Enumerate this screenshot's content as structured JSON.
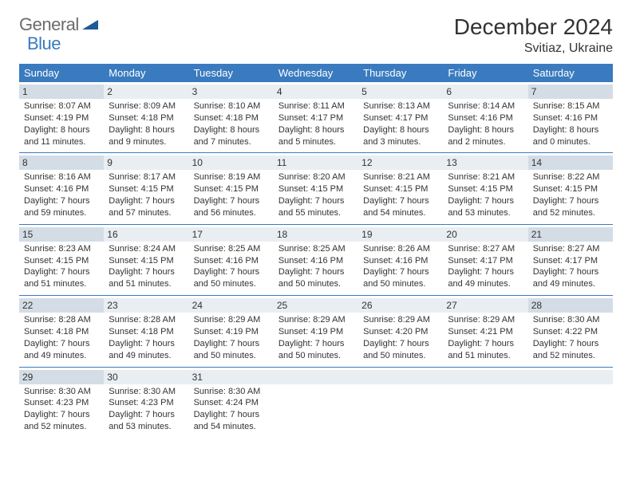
{
  "logo": {
    "text1": "General",
    "text2": "Blue",
    "shape_color": "#1e5a96"
  },
  "title": "December 2024",
  "subtitle": "Svitiaz, Ukraine",
  "colors": {
    "header_bg": "#3a7bbf",
    "header_text": "#ffffff",
    "daynum_bg": "#e9eef3",
    "daynum_hl_bg": "#d4dde6",
    "divider": "#3a7bbf",
    "text": "#333333",
    "page_bg": "#ffffff"
  },
  "typography": {
    "title_fontsize": 28,
    "subtitle_fontsize": 16,
    "dayhead_fontsize": 13,
    "daynum_fontsize": 12,
    "info_fontsize": 11
  },
  "dayheads": [
    "Sunday",
    "Monday",
    "Tuesday",
    "Wednesday",
    "Thursday",
    "Friday",
    "Saturday"
  ],
  "weeks": [
    [
      {
        "n": "1",
        "hl": true,
        "sunrise": "Sunrise: 8:07 AM",
        "sunset": "Sunset: 4:19 PM",
        "daylight": "Daylight: 8 hours and 11 minutes."
      },
      {
        "n": "2",
        "hl": false,
        "sunrise": "Sunrise: 8:09 AM",
        "sunset": "Sunset: 4:18 PM",
        "daylight": "Daylight: 8 hours and 9 minutes."
      },
      {
        "n": "3",
        "hl": false,
        "sunrise": "Sunrise: 8:10 AM",
        "sunset": "Sunset: 4:18 PM",
        "daylight": "Daylight: 8 hours and 7 minutes."
      },
      {
        "n": "4",
        "hl": false,
        "sunrise": "Sunrise: 8:11 AM",
        "sunset": "Sunset: 4:17 PM",
        "daylight": "Daylight: 8 hours and 5 minutes."
      },
      {
        "n": "5",
        "hl": false,
        "sunrise": "Sunrise: 8:13 AM",
        "sunset": "Sunset: 4:17 PM",
        "daylight": "Daylight: 8 hours and 3 minutes."
      },
      {
        "n": "6",
        "hl": false,
        "sunrise": "Sunrise: 8:14 AM",
        "sunset": "Sunset: 4:16 PM",
        "daylight": "Daylight: 8 hours and 2 minutes."
      },
      {
        "n": "7",
        "hl": true,
        "sunrise": "Sunrise: 8:15 AM",
        "sunset": "Sunset: 4:16 PM",
        "daylight": "Daylight: 8 hours and 0 minutes."
      }
    ],
    [
      {
        "n": "8",
        "hl": true,
        "sunrise": "Sunrise: 8:16 AM",
        "sunset": "Sunset: 4:16 PM",
        "daylight": "Daylight: 7 hours and 59 minutes."
      },
      {
        "n": "9",
        "hl": false,
        "sunrise": "Sunrise: 8:17 AM",
        "sunset": "Sunset: 4:15 PM",
        "daylight": "Daylight: 7 hours and 57 minutes."
      },
      {
        "n": "10",
        "hl": false,
        "sunrise": "Sunrise: 8:19 AM",
        "sunset": "Sunset: 4:15 PM",
        "daylight": "Daylight: 7 hours and 56 minutes."
      },
      {
        "n": "11",
        "hl": false,
        "sunrise": "Sunrise: 8:20 AM",
        "sunset": "Sunset: 4:15 PM",
        "daylight": "Daylight: 7 hours and 55 minutes."
      },
      {
        "n": "12",
        "hl": false,
        "sunrise": "Sunrise: 8:21 AM",
        "sunset": "Sunset: 4:15 PM",
        "daylight": "Daylight: 7 hours and 54 minutes."
      },
      {
        "n": "13",
        "hl": false,
        "sunrise": "Sunrise: 8:21 AM",
        "sunset": "Sunset: 4:15 PM",
        "daylight": "Daylight: 7 hours and 53 minutes."
      },
      {
        "n": "14",
        "hl": true,
        "sunrise": "Sunrise: 8:22 AM",
        "sunset": "Sunset: 4:15 PM",
        "daylight": "Daylight: 7 hours and 52 minutes."
      }
    ],
    [
      {
        "n": "15",
        "hl": true,
        "sunrise": "Sunrise: 8:23 AM",
        "sunset": "Sunset: 4:15 PM",
        "daylight": "Daylight: 7 hours and 51 minutes."
      },
      {
        "n": "16",
        "hl": false,
        "sunrise": "Sunrise: 8:24 AM",
        "sunset": "Sunset: 4:15 PM",
        "daylight": "Daylight: 7 hours and 51 minutes."
      },
      {
        "n": "17",
        "hl": false,
        "sunrise": "Sunrise: 8:25 AM",
        "sunset": "Sunset: 4:16 PM",
        "daylight": "Daylight: 7 hours and 50 minutes."
      },
      {
        "n": "18",
        "hl": false,
        "sunrise": "Sunrise: 8:25 AM",
        "sunset": "Sunset: 4:16 PM",
        "daylight": "Daylight: 7 hours and 50 minutes."
      },
      {
        "n": "19",
        "hl": false,
        "sunrise": "Sunrise: 8:26 AM",
        "sunset": "Sunset: 4:16 PM",
        "daylight": "Daylight: 7 hours and 50 minutes."
      },
      {
        "n": "20",
        "hl": false,
        "sunrise": "Sunrise: 8:27 AM",
        "sunset": "Sunset: 4:17 PM",
        "daylight": "Daylight: 7 hours and 49 minutes."
      },
      {
        "n": "21",
        "hl": true,
        "sunrise": "Sunrise: 8:27 AM",
        "sunset": "Sunset: 4:17 PM",
        "daylight": "Daylight: 7 hours and 49 minutes."
      }
    ],
    [
      {
        "n": "22",
        "hl": true,
        "sunrise": "Sunrise: 8:28 AM",
        "sunset": "Sunset: 4:18 PM",
        "daylight": "Daylight: 7 hours and 49 minutes."
      },
      {
        "n": "23",
        "hl": false,
        "sunrise": "Sunrise: 8:28 AM",
        "sunset": "Sunset: 4:18 PM",
        "daylight": "Daylight: 7 hours and 49 minutes."
      },
      {
        "n": "24",
        "hl": false,
        "sunrise": "Sunrise: 8:29 AM",
        "sunset": "Sunset: 4:19 PM",
        "daylight": "Daylight: 7 hours and 50 minutes."
      },
      {
        "n": "25",
        "hl": false,
        "sunrise": "Sunrise: 8:29 AM",
        "sunset": "Sunset: 4:19 PM",
        "daylight": "Daylight: 7 hours and 50 minutes."
      },
      {
        "n": "26",
        "hl": false,
        "sunrise": "Sunrise: 8:29 AM",
        "sunset": "Sunset: 4:20 PM",
        "daylight": "Daylight: 7 hours and 50 minutes."
      },
      {
        "n": "27",
        "hl": false,
        "sunrise": "Sunrise: 8:29 AM",
        "sunset": "Sunset: 4:21 PM",
        "daylight": "Daylight: 7 hours and 51 minutes."
      },
      {
        "n": "28",
        "hl": true,
        "sunrise": "Sunrise: 8:30 AM",
        "sunset": "Sunset: 4:22 PM",
        "daylight": "Daylight: 7 hours and 52 minutes."
      }
    ],
    [
      {
        "n": "29",
        "hl": true,
        "sunrise": "Sunrise: 8:30 AM",
        "sunset": "Sunset: 4:23 PM",
        "daylight": "Daylight: 7 hours and 52 minutes."
      },
      {
        "n": "30",
        "hl": false,
        "sunrise": "Sunrise: 8:30 AM",
        "sunset": "Sunset: 4:23 PM",
        "daylight": "Daylight: 7 hours and 53 minutes."
      },
      {
        "n": "31",
        "hl": false,
        "sunrise": "Sunrise: 8:30 AM",
        "sunset": "Sunset: 4:24 PM",
        "daylight": "Daylight: 7 hours and 54 minutes."
      },
      {
        "empty": true
      },
      {
        "empty": true
      },
      {
        "empty": true
      },
      {
        "empty": true
      }
    ]
  ]
}
